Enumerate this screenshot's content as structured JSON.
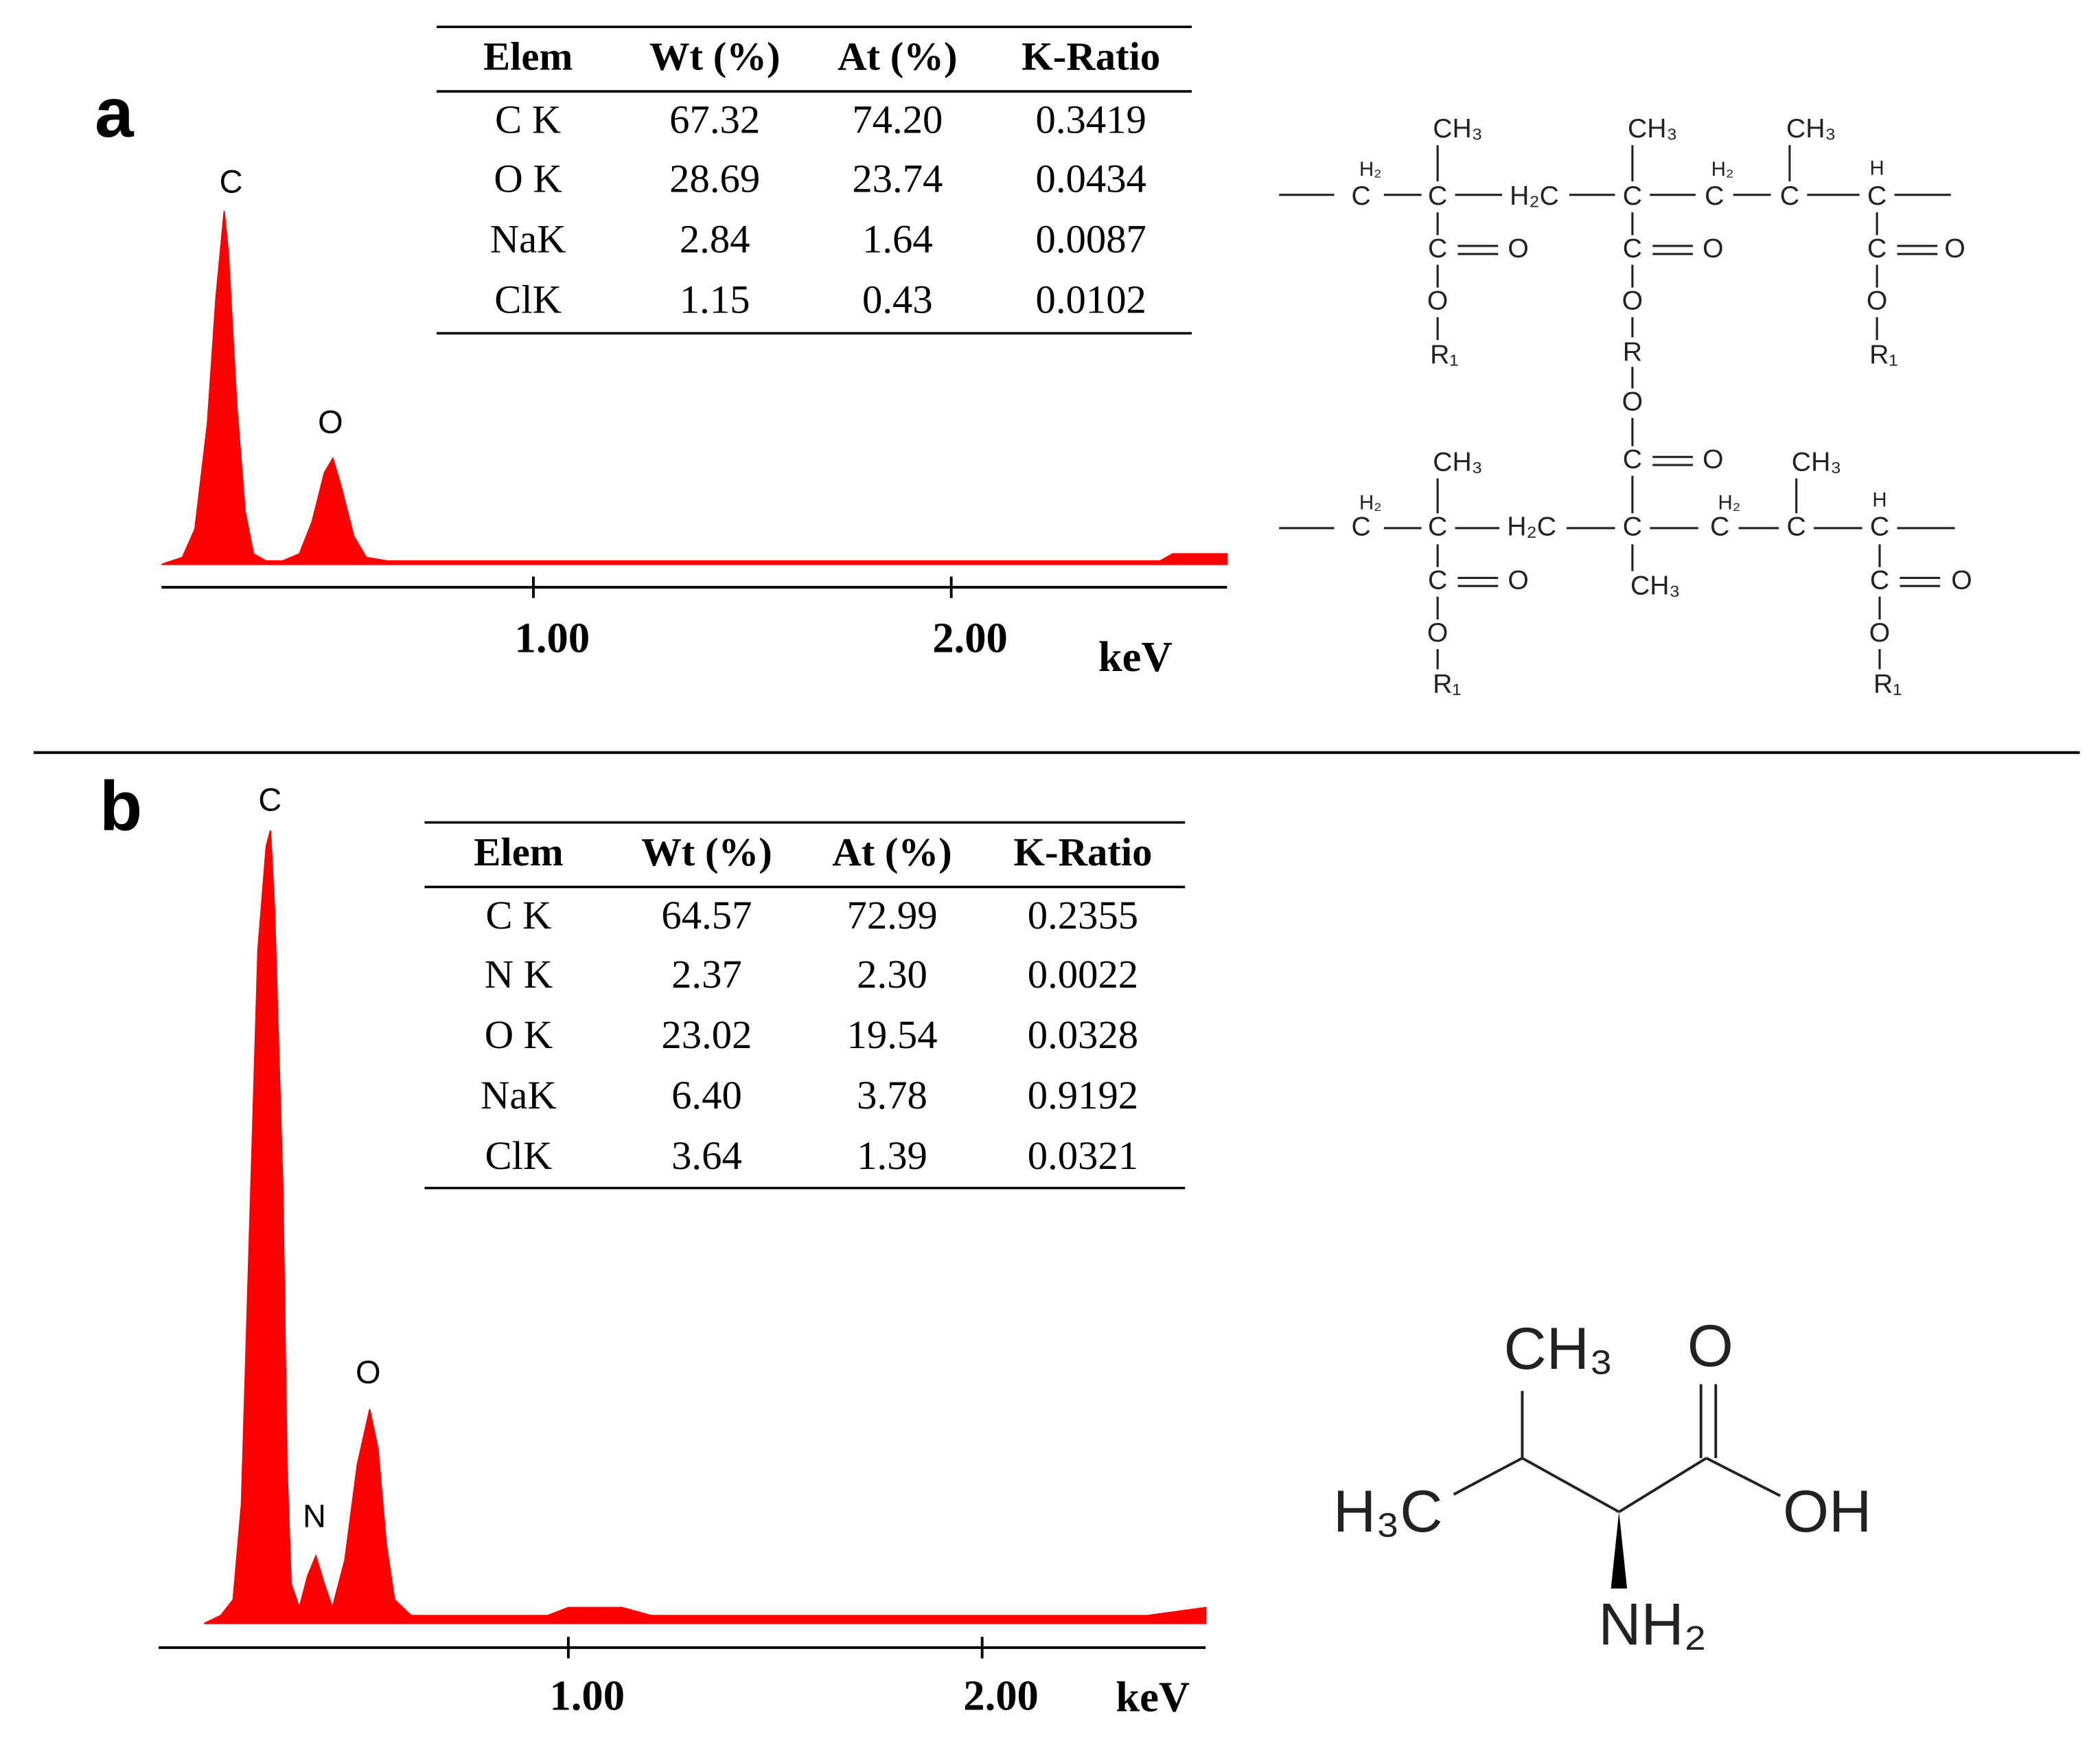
{
  "panel_labels": [
    "a",
    "b"
  ],
  "chart_data": [
    {
      "type": "area",
      "color": "#ff0000",
      "xlabel": "keV",
      "x": [
        0.11,
        0.16,
        0.19,
        0.22,
        0.24,
        0.26,
        0.27,
        0.29,
        0.31,
        0.33,
        0.36,
        0.4,
        0.44,
        0.47,
        0.5,
        0.52,
        0.54,
        0.57,
        0.6,
        0.65,
        1.0,
        1.5,
        2.0,
        2.5,
        2.53,
        2.66
      ],
      "values": [
        0,
        2,
        10,
        40,
        75,
        100,
        88,
        45,
        15,
        3,
        1,
        1,
        3,
        12,
        26,
        30,
        22,
        8,
        2,
        1,
        1,
        1,
        1,
        1,
        3,
        3
      ],
      "xlim": [
        0.11,
        2.66
      ],
      "ylim": [
        0,
        100
      ],
      "xticks": [
        {
          "value": 1,
          "label": "1.00"
        },
        {
          "value": 2,
          "label": "2.00"
        }
      ],
      "peak_labels": [
        "C",
        "O"
      ]
    },
    {
      "type": "area",
      "color": "#ff0000",
      "xlabel": "keV",
      "x": [
        0.12,
        0.16,
        0.19,
        0.21,
        0.23,
        0.25,
        0.27,
        0.28,
        0.29,
        0.31,
        0.32,
        0.33,
        0.35,
        0.37,
        0.39,
        0.41,
        0.43,
        0.46,
        0.49,
        0.52,
        0.54,
        0.56,
        0.58,
        0.62,
        0.95,
        1.0,
        1.13,
        1.2,
        2.0,
        2.4,
        2.54
      ],
      "values": [
        0,
        1,
        3,
        15,
        50,
        85,
        98,
        100,
        90,
        55,
        20,
        5,
        2,
        6,
        8.5,
        5,
        2,
        8,
        20,
        27,
        22,
        10,
        3,
        1,
        1,
        2,
        2,
        1,
        1,
        1,
        2
      ],
      "xlim": [
        0.01,
        2.54
      ],
      "ylim": [
        0,
        100
      ],
      "xticks": [
        {
          "value": 1,
          "label": "1.00"
        },
        {
          "value": 2,
          "label": "2.00"
        }
      ],
      "peak_labels": [
        "C",
        "N",
        "O"
      ]
    }
  ],
  "tables": [
    {
      "columns": [
        "Elem",
        "Wt (%)",
        "At (%)",
        "K-Ratio"
      ],
      "rows": [
        [
          "C K",
          "67.32",
          "74.20",
          "0.3419"
        ],
        [
          "O K",
          "28.69",
          "23.74",
          "0.0434"
        ],
        [
          "NaK",
          "2.84",
          "1.64",
          "0.0087"
        ],
        [
          "ClK",
          "1.15",
          "0.43",
          "0.0102"
        ]
      ]
    },
    {
      "columns": [
        "Elem",
        "Wt (%)",
        "At (%)",
        "K-Ratio"
      ],
      "rows": [
        [
          "C K",
          "64.57",
          "72.99",
          "0.2355"
        ],
        [
          "N K",
          "2.37",
          "2.30",
          "0.0022"
        ],
        [
          "O K",
          "23.02",
          "19.54",
          "0.0328"
        ],
        [
          "NaK",
          "6.40",
          "3.78",
          "0.9192"
        ],
        [
          "ClK",
          "3.64",
          "1.39",
          "0.0321"
        ]
      ]
    }
  ],
  "structures": {
    "a": [
      "H₂",
      "C",
      "CH₃",
      "C",
      "H₂C",
      "CH₃",
      "C",
      "H₂",
      "C",
      "CH₃",
      "C",
      "H",
      "C",
      "C",
      "O",
      "O",
      "R₁",
      "C",
      "O",
      "O",
      "R",
      "O",
      "C",
      "O",
      "C",
      "O",
      "O",
      "R₁",
      "H₂",
      "C",
      "CH₃",
      "C",
      "H₂C",
      "C",
      "CH₃",
      "H₂",
      "C",
      "CH₃",
      "C",
      "H",
      "C",
      "C",
      "O",
      "O",
      "R₁",
      "C",
      "O",
      "O",
      "R₁"
    ],
    "b": [
      "CH₃",
      "O",
      "H₃C",
      "OH",
      "NH₂"
    ]
  }
}
